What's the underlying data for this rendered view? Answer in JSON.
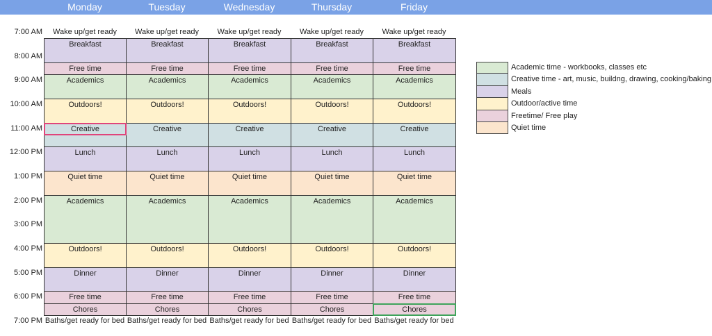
{
  "days": [
    "Monday",
    "Tuesday",
    "Wednesday",
    "Thursday",
    "Friday"
  ],
  "time_labels": [
    {
      "label": "7:00 AM",
      "t": 7
    },
    {
      "label": "8:00 AM",
      "t": 8
    },
    {
      "label": "9:00 AM",
      "t": 9
    },
    {
      "label": "10:00 AM",
      "t": 10
    },
    {
      "label": "11:00 AM",
      "t": 11
    },
    {
      "label": "12:00 PM",
      "t": 12
    },
    {
      "label": "1:00 PM",
      "t": 13
    },
    {
      "label": "2:00 PM",
      "t": 14
    },
    {
      "label": "3:00 PM",
      "t": 15
    },
    {
      "label": "4:00 PM",
      "t": 16
    },
    {
      "label": "5:00 PM",
      "t": 17
    },
    {
      "label": "6:00 PM",
      "t": 18
    },
    {
      "label": "7:00 PM",
      "t": 19
    }
  ],
  "schedule": {
    "blocks": [
      {
        "label": "Wake up/get ready",
        "start": 7,
        "end": 7.5,
        "category": "none"
      },
      {
        "label": "Breakfast",
        "start": 7.5,
        "end": 8.5,
        "category": "meals"
      },
      {
        "label": "Free time",
        "start": 8.5,
        "end": 9,
        "category": "free"
      },
      {
        "label": "Academics",
        "start": 9,
        "end": 10,
        "category": "academic"
      },
      {
        "label": "Outdoors!",
        "start": 10,
        "end": 11,
        "category": "outdoor"
      },
      {
        "label": "Creative",
        "start": 11,
        "end": 12,
        "category": "creative"
      },
      {
        "label": "Lunch",
        "start": 12,
        "end": 13,
        "category": "meals"
      },
      {
        "label": "Quiet time",
        "start": 13,
        "end": 14,
        "category": "quiet"
      },
      {
        "label": "Academics",
        "start": 14,
        "end": 16,
        "category": "academic"
      },
      {
        "label": "Outdoors!",
        "start": 16,
        "end": 17,
        "category": "outdoor"
      },
      {
        "label": "Dinner",
        "start": 17,
        "end": 18,
        "category": "meals"
      },
      {
        "label": "Free time",
        "start": 18,
        "end": 18.5,
        "category": "free"
      },
      {
        "label": "Chores",
        "start": 18.5,
        "end": 19,
        "category": "free"
      },
      {
        "label": "Baths/get ready for bed",
        "start": 19,
        "end": 19.5,
        "category": "none"
      }
    ]
  },
  "colors": {
    "header": "#7aa2e6",
    "academic": "#d9ead3",
    "creative": "#d0e0e3",
    "meals": "#d9d2e9",
    "outdoor": "#fff2cc",
    "free": "#ead1dc",
    "quiet": "#fce5cd"
  },
  "selections": [
    {
      "day": "Monday",
      "start": 11,
      "end": 11.5,
      "color": "#e0457b"
    },
    {
      "day": "Friday",
      "start": 18.5,
      "end": 19,
      "color": "#3fa35b"
    }
  ],
  "legend": [
    {
      "label": "Academic time - workbooks, classes etc",
      "category": "academic"
    },
    {
      "label": "Creative time - art, music, buildng, drawing, cooking/baking",
      "category": "creative"
    },
    {
      "label": "Meals",
      "category": "meals"
    },
    {
      "label": "Outdoor/active time",
      "category": "outdoor"
    },
    {
      "label": "Freetime/ Free play",
      "category": "free"
    },
    {
      "label": "Quiet time",
      "category": "quiet"
    }
  ]
}
